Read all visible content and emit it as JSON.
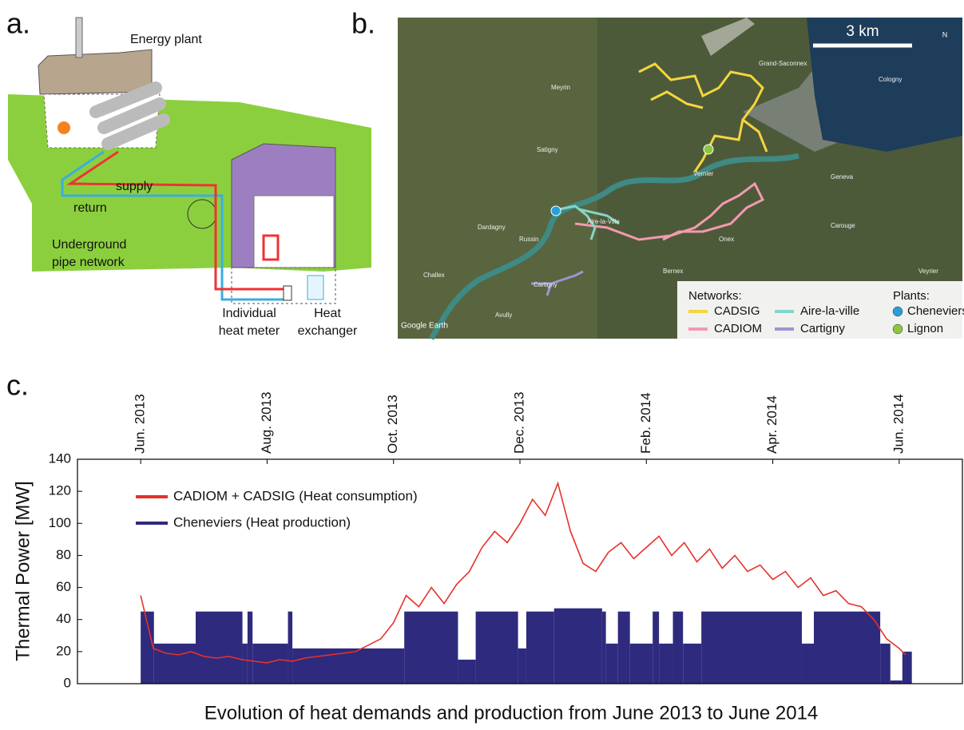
{
  "panels": {
    "a": {
      "label": "a.",
      "energy_plant": "Energy plant",
      "supply": "supply",
      "return": "return",
      "pipe_network": [
        "Underground",
        "pipe network"
      ],
      "heat_meter": [
        "Individual",
        "heat meter"
      ],
      "heat_exchanger": [
        "Heat",
        "exchanger"
      ]
    },
    "b": {
      "label": "b.",
      "scale": "3 km",
      "north": "N",
      "credit": "Google Earth",
      "networks_title": "Networks:",
      "networks": [
        {
          "name": "CADSIG",
          "color": "#f5d63d"
        },
        {
          "name": "CADIOM",
          "color": "#f29ab0"
        },
        {
          "name": "Aire-la-ville",
          "color": "#86d4c8"
        },
        {
          "name": "Cartigny",
          "color": "#9d94d6"
        }
      ],
      "plants_title": "Plants:",
      "plants": [
        {
          "name": "Cheneviers",
          "color": "#2a9fd6"
        },
        {
          "name": "Lignon",
          "color": "#8cc63f"
        }
      ],
      "places": [
        "Satigny",
        "Dardagny",
        "Russin",
        "Challex",
        "Avully",
        "Cartigny",
        "Aire-la-Ville",
        "Vernier",
        "Onex",
        "Bernex",
        "Geneva",
        "Carouge",
        "Meyrin",
        "Grand-Saconnex",
        "Cologny",
        "Veyrier"
      ]
    },
    "c": {
      "label": "c."
    }
  },
  "chart_data": {
    "type": "line",
    "title": "Evolution of heat demands and production from June 2013 to June 2014",
    "ylabel": "Thermal Power [MW]",
    "xlim": [
      -1,
      13
    ],
    "xticks": [
      {
        "value": 0,
        "label": "Jun. 2013"
      },
      {
        "value": 2,
        "label": "Aug. 2013"
      },
      {
        "value": 4,
        "label": "Oct. 2013"
      },
      {
        "value": 6,
        "label": "Dec. 2013"
      },
      {
        "value": 8,
        "label": "Feb. 2014"
      },
      {
        "value": 10,
        "label": "Apr. 2014"
      },
      {
        "value": 12,
        "label": "Jun. 2014"
      }
    ],
    "ylim": [
      0,
      140
    ],
    "yticks": [
      0,
      20,
      40,
      60,
      80,
      100,
      120,
      140
    ],
    "legend": "upper left",
    "series": [
      {
        "name": "CADIOM + CADSIG (Heat consumption)",
        "color": "#e8312a",
        "type": "line",
        "x": [
          0,
          0.2,
          0.4,
          0.6,
          0.8,
          1.0,
          1.2,
          1.4,
          1.6,
          1.8,
          2.0,
          2.2,
          2.4,
          2.6,
          2.8,
          3.0,
          3.2,
          3.4,
          3.6,
          3.8,
          4.0,
          4.2,
          4.4,
          4.6,
          4.8,
          5.0,
          5.2,
          5.4,
          5.6,
          5.8,
          6.0,
          6.2,
          6.4,
          6.6,
          6.8,
          7.0,
          7.2,
          7.4,
          7.6,
          7.8,
          8.0,
          8.2,
          8.4,
          8.6,
          8.8,
          9.0,
          9.2,
          9.4,
          9.6,
          9.8,
          10.0,
          10.2,
          10.4,
          10.6,
          10.8,
          11.0,
          11.2,
          11.4,
          11.6,
          11.8,
          12.0,
          12.1
        ],
        "values": [
          55,
          22,
          19,
          18,
          20,
          17,
          16,
          17,
          15,
          14,
          13,
          15,
          14,
          16,
          17,
          18,
          19,
          20,
          24,
          28,
          38,
          55,
          48,
          60,
          50,
          62,
          70,
          85,
          95,
          88,
          100,
          115,
          105,
          125,
          95,
          75,
          70,
          82,
          88,
          78,
          85,
          92,
          80,
          88,
          76,
          84,
          72,
          80,
          70,
          74,
          65,
          70,
          60,
          66,
          55,
          58,
          50,
          48,
          40,
          28,
          22,
          18
        ]
      },
      {
        "name": "Cheneviers (Heat production)",
        "color": "#2e2a7e",
        "type": "step",
        "bins": [
          0,
          0.21,
          0.87,
          1.61,
          1.69,
          1.77,
          2.33,
          2.4,
          4.17,
          5.02,
          5.3,
          5.97,
          6.1,
          6.54,
          7.3,
          7.36,
          7.55,
          7.74,
          8.1,
          8.2,
          8.42,
          8.58,
          8.87,
          10.46,
          10.65,
          11.7,
          11.86,
          12.05,
          12.2
        ],
        "values": [
          45,
          25,
          45,
          25,
          45,
          25,
          45,
          22,
          45,
          15,
          45,
          22,
          45,
          47,
          45,
          25,
          45,
          25,
          45,
          25,
          45,
          25,
          45,
          25,
          45,
          25,
          2,
          20
        ]
      }
    ]
  }
}
